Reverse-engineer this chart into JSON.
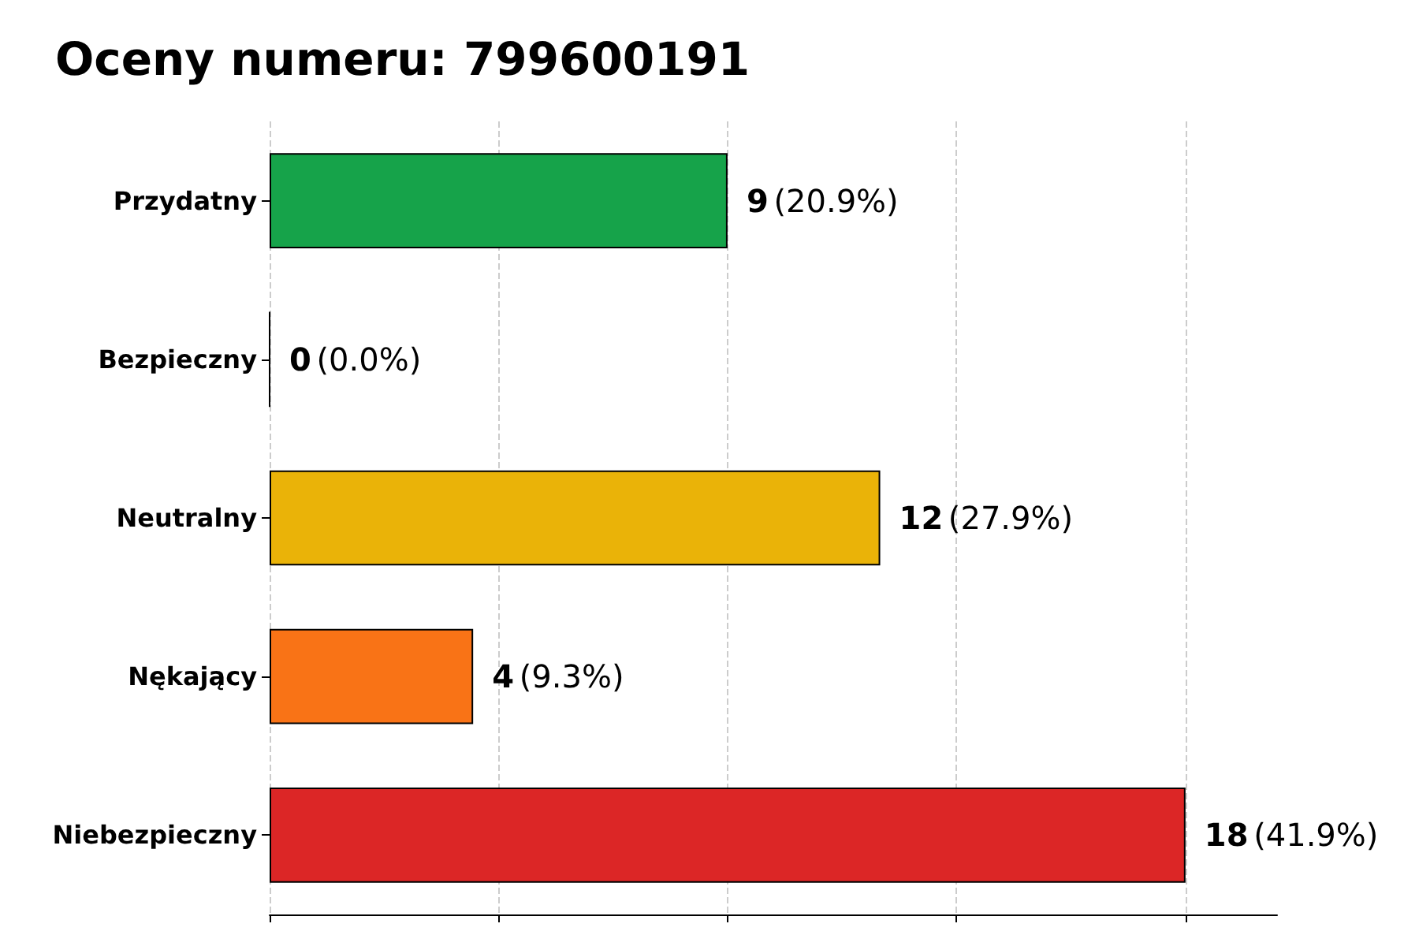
{
  "chart_data": {
    "type": "bar",
    "orientation": "horizontal",
    "title": "Oceny numeru: 799600191",
    "categories": [
      "Przydatny",
      "Bezpieczny",
      "Neutralny",
      "Nękający",
      "Niebezpieczny"
    ],
    "values": [
      9,
      0,
      12,
      4,
      18
    ],
    "colors": [
      "#16a34a",
      "#000000",
      "#eab308",
      "#f97316",
      "#dc2626"
    ],
    "value_labels": [
      "9 (20.9%)",
      "0 (0.0%)",
      "12 (27.9%)",
      "4 (9.3%)",
      "18 (41.9%)"
    ],
    "xlim": [
      0,
      19.8
    ],
    "xticks": [
      {
        "value": 0,
        "label": null
      },
      {
        "value": 4.5,
        "label": null
      },
      {
        "value": 9,
        "label": null
      },
      {
        "value": 13.5,
        "label": null
      },
      {
        "value": 18,
        "label": null
      }
    ],
    "tick_labels": "y",
    "grid": "x"
  }
}
